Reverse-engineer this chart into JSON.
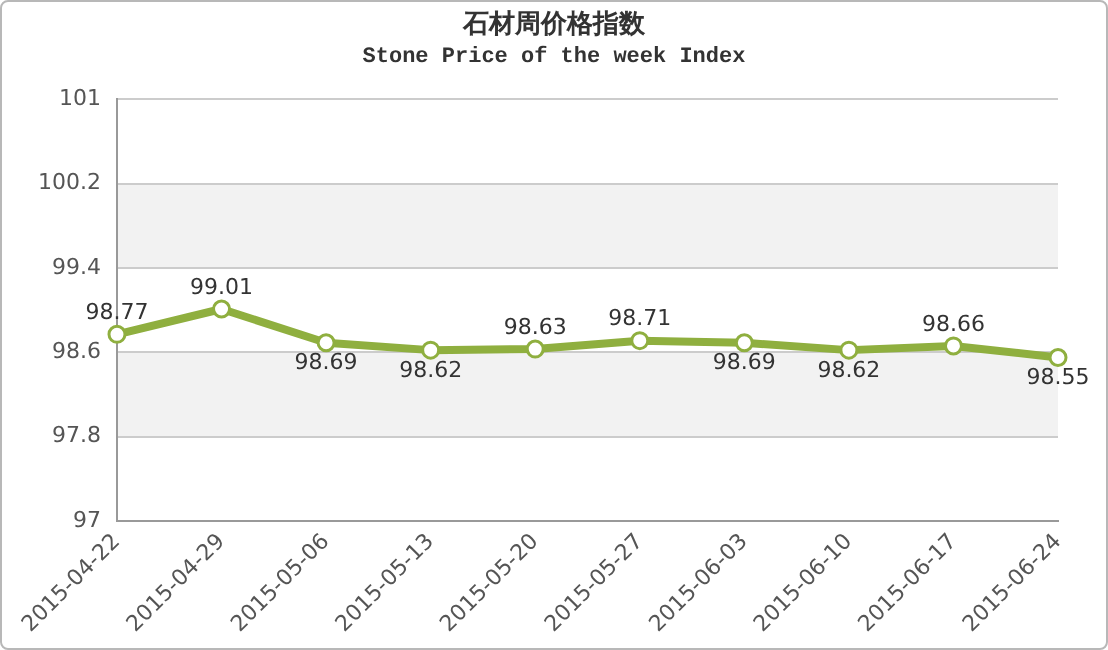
{
  "chart_data": {
    "type": "line",
    "title": "石材周价格指数",
    "subtitle": "Stone Price of the week Index",
    "categories": [
      "2015-04-22",
      "2015-04-29",
      "2015-05-06",
      "2015-05-13",
      "2015-05-20",
      "2015-05-27",
      "2015-06-03",
      "2015-06-10",
      "2015-06-17",
      "2015-06-24"
    ],
    "series": [
      {
        "color": "#8faf3f",
        "values": [
          98.77,
          99.01,
          98.69,
          98.62,
          98.63,
          98.71,
          98.69,
          98.62,
          98.66,
          98.55
        ]
      }
    ],
    "ylim": [
      97,
      101
    ],
    "yticks": [
      97,
      97.8,
      98.6,
      99.4,
      100.2,
      101
    ],
    "grid": "y",
    "legend": false,
    "marker": "circle",
    "line_style": "solid",
    "data_labels": true
  }
}
